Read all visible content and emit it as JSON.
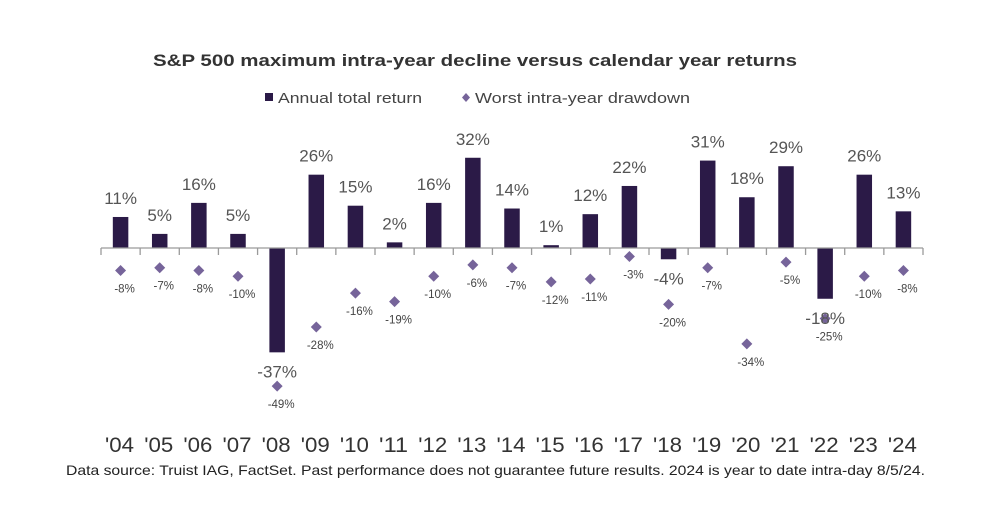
{
  "chart_data": {
    "type": "bar",
    "title": "S&P 500 maximum intra-year decline versus calendar year  returns",
    "xlabel": "",
    "ylabel": "",
    "ylim": [
      -50,
      35
    ],
    "grid": false,
    "legend_position": "top-center",
    "categories": [
      "'04",
      "'05",
      "'06",
      "'07",
      "'08",
      "'09",
      "'10",
      "'11",
      "'12",
      "'13",
      "'14",
      "'15",
      "'16",
      "'17",
      "'18",
      "'19",
      "'20",
      "'21",
      "'22",
      "'23",
      "'24"
    ],
    "series": [
      {
        "name": "Annual total return",
        "kind": "bar",
        "color": "#2b1a47",
        "values": [
          11,
          5,
          16,
          5,
          -37,
          26,
          15,
          2,
          16,
          32,
          14,
          1,
          12,
          22,
          -4,
          31,
          18,
          29,
          -18,
          26,
          13
        ],
        "labels": [
          "11%",
          "5%",
          "16%",
          "5%",
          "-37%",
          "26%",
          "15%",
          "2%",
          "16%",
          "32%",
          "14%",
          "1%",
          "12%",
          "22%",
          "-4%",
          "31%",
          "18%",
          "29%",
          "-18%",
          "26%",
          "13%"
        ]
      },
      {
        "name": "Worst intra-year drawdown",
        "kind": "diamond-marker",
        "color": "#76649a",
        "values": [
          -8,
          -7,
          -8,
          -10,
          -49,
          -28,
          -16,
          -19,
          -10,
          -6,
          -7,
          -12,
          -11,
          -3,
          -20,
          -7,
          -34,
          -5,
          -25,
          -10,
          -8
        ],
        "labels": [
          "-8%",
          "-7%",
          "-8%",
          "-10%",
          "-49%",
          "-28%",
          "-16%",
          "-19%",
          "-10%",
          "-6%",
          "-7%",
          "-12%",
          "-11%",
          "-3%",
          "-20%",
          "-7%",
          "-34%",
          "-5%",
          "-25%",
          "-10%",
          "-8%"
        ]
      }
    ],
    "footnote": "Data source: Truist IAG, FactSet. Past performance does not guarantee future results. 2024 is year to date intra-day 8/5/24."
  },
  "colors": {
    "bar": "#2b1a47",
    "diamond": "#76649a",
    "axis": "#9a9a9a"
  }
}
